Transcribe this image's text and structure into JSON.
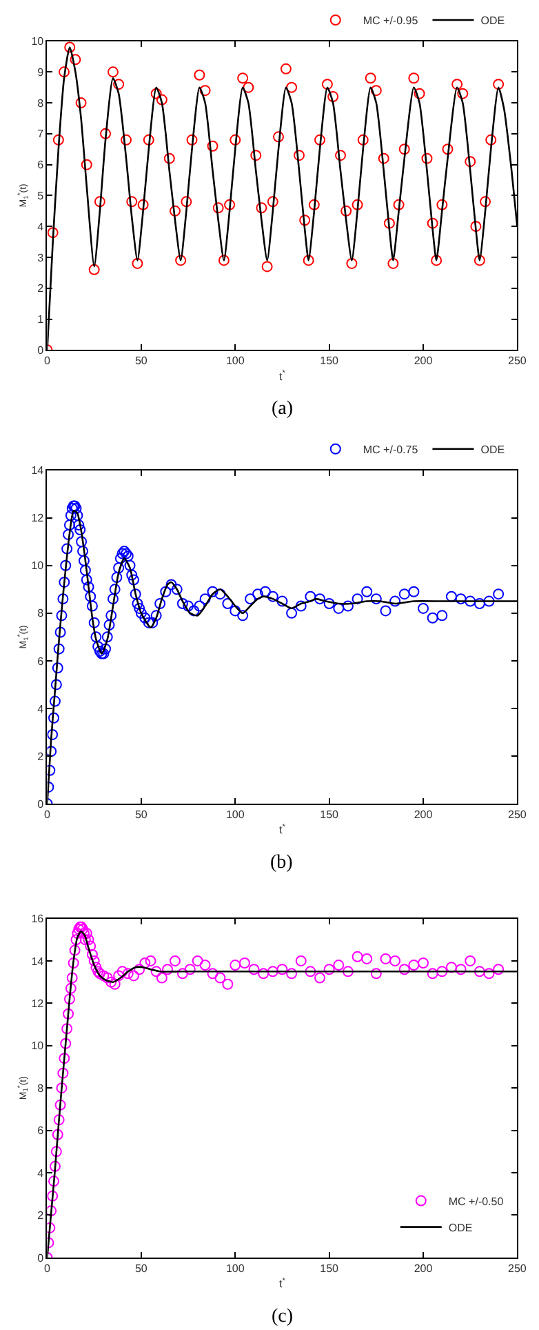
{
  "chart_data": [
    {
      "type": "scatter",
      "xlabel": "t$^{*}$",
      "ylabel": "M$_{1}$$^{*}$(t)",
      "xlim": [
        0,
        250
      ],
      "xticks": [
        0,
        50,
        100,
        150,
        200,
        250
      ],
      "ylim": [
        0,
        10
      ],
      "yticks": [
        0,
        1,
        2,
        3,
        4,
        5,
        6,
        7,
        8,
        9,
        10
      ],
      "legend": "top right",
      "annotations": [
        "(a)"
      ],
      "series": [
        {
          "name": "MC +/-0.95",
          "type": "scatter",
          "marker": "circle",
          "color": "#ff0000",
          "x": [
            0,
            3,
            6,
            9,
            12,
            15,
            18,
            21,
            25,
            28,
            31,
            35,
            38,
            42,
            45,
            48,
            51,
            54,
            58,
            61,
            65,
            68,
            71,
            74,
            77,
            81,
            84,
            88,
            91,
            94,
            97,
            100,
            104,
            107,
            111,
            114,
            117,
            120,
            123,
            127,
            130,
            134,
            137,
            139,
            142,
            145,
            149,
            152,
            156,
            159,
            162,
            165,
            168,
            172,
            175,
            179,
            182,
            184,
            187,
            190,
            195,
            198,
            202,
            205,
            207,
            210,
            213,
            218,
            221,
            225,
            228,
            230,
            233,
            236,
            240
          ],
          "values": [
            0,
            3.8,
            6.8,
            9.0,
            9.8,
            9.4,
            8.0,
            6.0,
            2.6,
            4.8,
            7.0,
            9.0,
            8.6,
            6.8,
            4.8,
            2.8,
            4.7,
            6.8,
            8.3,
            8.1,
            6.2,
            4.5,
            2.9,
            4.8,
            6.8,
            8.9,
            8.4,
            6.6,
            4.6,
            2.9,
            4.7,
            6.8,
            8.8,
            8.5,
            6.3,
            4.6,
            2.7,
            4.8,
            6.9,
            9.1,
            8.5,
            6.3,
            4.2,
            2.9,
            4.7,
            6.8,
            8.6,
            8.2,
            6.3,
            4.5,
            2.8,
            4.7,
            6.8,
            8.8,
            8.4,
            6.2,
            4.1,
            2.8,
            4.7,
            6.5,
            8.8,
            8.3,
            6.2,
            4.1,
            2.9,
            4.7,
            6.5,
            8.6,
            8.3,
            6.1,
            4.0,
            2.9,
            4.8,
            6.8,
            8.6
          ]
        },
        {
          "name": "ODE",
          "type": "line",
          "line_style": "solid",
          "color": "#000000",
          "x": [
            0,
            3,
            6,
            9,
            12,
            15,
            18,
            21,
            25,
            28,
            31,
            35,
            38,
            42,
            45,
            48,
            51,
            54,
            58,
            61,
            65,
            68,
            71,
            74,
            77,
            81,
            84,
            88,
            91,
            94,
            97,
            100,
            104,
            107,
            111,
            114,
            117,
            120,
            123,
            127,
            130,
            134,
            137,
            139,
            142,
            145,
            149,
            152,
            156,
            159,
            162,
            165,
            168,
            172,
            175,
            179,
            182,
            184,
            187,
            190,
            195,
            198,
            202,
            205,
            207,
            210,
            213,
            218,
            221,
            225,
            228,
            230,
            233,
            236,
            240,
            243,
            247,
            250
          ],
          "values": [
            0,
            3.5,
            6.5,
            8.8,
            9.8,
            9.0,
            7.5,
            5.3,
            2.7,
            4.5,
            6.8,
            8.8,
            8.3,
            6.2,
            4.3,
            2.9,
            4.5,
            6.5,
            8.5,
            8.0,
            5.8,
            4.2,
            2.9,
            4.5,
            6.5,
            8.5,
            8.0,
            5.8,
            4.2,
            2.9,
            4.5,
            6.5,
            8.5,
            8.0,
            5.8,
            4.2,
            2.9,
            4.5,
            6.5,
            8.5,
            8.0,
            5.8,
            3.9,
            2.9,
            4.5,
            6.5,
            8.5,
            8.0,
            5.8,
            4.2,
            2.9,
            4.5,
            6.5,
            8.5,
            8.0,
            5.8,
            3.9,
            2.9,
            4.5,
            6.2,
            8.5,
            8.0,
            5.8,
            3.9,
            2.9,
            4.5,
            6.2,
            8.5,
            8.0,
            5.8,
            3.9,
            2.9,
            4.5,
            6.5,
            8.5,
            7.8,
            5.8,
            4.0
          ]
        }
      ]
    },
    {
      "type": "scatter",
      "xlabel": "t$^{*}$",
      "ylabel": "M$_{1}$$^{*}$(t)",
      "xlim": [
        0,
        250
      ],
      "xticks": [
        0,
        50,
        100,
        150,
        200,
        250
      ],
      "ylim": [
        0,
        14
      ],
      "yticks": [
        0,
        2,
        4,
        6,
        8,
        10,
        12,
        14
      ],
      "legend": "top right",
      "annotations": [
        "(b)"
      ],
      "series": [
        {
          "name": "MC +/-0.75",
          "type": "scatter",
          "marker": "circle",
          "color": "#0000ff",
          "x": [
            0,
            0.7,
            1.4,
            2.1,
            2.8,
            3.5,
            4.2,
            4.9,
            5.6,
            6.3,
            7.0,
            7.7,
            8.4,
            9.1,
            9.8,
            10.5,
            11.2,
            11.9,
            12.6,
            13.3,
            14.0,
            14.7,
            15.4,
            16.1,
            16.8,
            17.5,
            18.2,
            18.9,
            19.6,
            20.3,
            21,
            22,
            23,
            24,
            25,
            26,
            27,
            28,
            29,
            30,
            31,
            32,
            33,
            34,
            35,
            36,
            37,
            38,
            39,
            40,
            41,
            42,
            43,
            44,
            45,
            46,
            47,
            48,
            49,
            50,
            52,
            54,
            56,
            58,
            60,
            63,
            66,
            69,
            72,
            75,
            78,
            81,
            84,
            88,
            92,
            96,
            100,
            104,
            108,
            112,
            116,
            120,
            125,
            130,
            135,
            140,
            145,
            150,
            155,
            160,
            165,
            170,
            175,
            180,
            185,
            190,
            195,
            200,
            205,
            210,
            215,
            220,
            225,
            230,
            235,
            240
          ],
          "values": [
            0,
            0.7,
            1.4,
            2.2,
            2.9,
            3.6,
            4.3,
            5.0,
            5.7,
            6.5,
            7.2,
            7.9,
            8.6,
            9.3,
            10.0,
            10.7,
            11.3,
            11.7,
            12.1,
            12.4,
            12.5,
            12.5,
            12.4,
            12.1,
            11.7,
            11.5,
            11.0,
            10.6,
            10.2,
            9.8,
            9.4,
            9.1,
            8.7,
            8.3,
            7.6,
            7.0,
            6.6,
            6.4,
            6.3,
            6.3,
            6.5,
            7.0,
            7.5,
            7.9,
            8.6,
            9.0,
            9.5,
            9.9,
            10.3,
            10.5,
            10.6,
            10.5,
            10.4,
            10.0,
            9.6,
            9.4,
            8.8,
            8.4,
            8.2,
            8.0,
            7.8,
            7.6,
            7.6,
            7.9,
            8.4,
            8.9,
            9.2,
            9.0,
            8.4,
            8.3,
            8.1,
            8.3,
            8.6,
            8.9,
            8.8,
            8.4,
            8.1,
            7.9,
            8.6,
            8.8,
            8.9,
            8.7,
            8.5,
            8.0,
            8.3,
            8.7,
            8.6,
            8.4,
            8.2,
            8.3,
            8.6,
            8.9,
            8.6,
            8.1,
            8.5,
            8.8,
            8.9,
            8.2,
            7.8,
            7.9,
            8.7,
            8.6,
            8.5,
            8.4,
            8.5,
            8.8
          ]
        },
        {
          "name": "ODE",
          "type": "line",
          "line_style": "solid",
          "color": "#000000",
          "x": [
            0,
            2,
            4,
            6,
            8,
            10,
            12,
            14,
            16,
            18,
            20,
            22,
            24,
            26,
            29,
            32,
            35,
            38,
            41,
            44,
            47,
            50,
            55,
            58,
            61,
            64,
            66,
            69,
            72,
            76,
            80,
            84,
            88,
            92,
            96,
            100,
            104,
            108,
            112,
            115,
            120,
            125,
            130,
            135,
            140,
            143,
            148,
            155,
            162,
            170,
            177,
            185,
            195,
            210,
            230,
            250
          ],
          "values": [
            0,
            2.6,
            4.6,
            6.6,
            8.4,
            10.0,
            11.4,
            12.3,
            12.2,
            11.5,
            10.4,
            9.1,
            7.8,
            6.9,
            6.3,
            6.9,
            8.3,
            9.7,
            10.3,
            9.9,
            8.8,
            8.0,
            7.4,
            7.8,
            8.6,
            9.2,
            9.3,
            9.0,
            8.5,
            8.0,
            7.9,
            8.3,
            8.8,
            9.0,
            8.7,
            8.3,
            8.0,
            8.3,
            8.6,
            8.7,
            8.6,
            8.4,
            8.2,
            8.4,
            8.5,
            8.6,
            8.5,
            8.4,
            8.4,
            8.5,
            8.5,
            8.4,
            8.5,
            8.5,
            8.5,
            8.5
          ]
        }
      ]
    },
    {
      "type": "scatter",
      "xlabel": "t$^{*}$",
      "ylabel": "M$_{1}$$^{*}$(t)",
      "xlim": [
        0,
        250
      ],
      "xticks": [
        0,
        50,
        100,
        150,
        200,
        250
      ],
      "ylim": [
        0,
        16
      ],
      "yticks": [
        0,
        2,
        4,
        6,
        8,
        10,
        12,
        14,
        16
      ],
      "legend": "bottom right",
      "annotations": [
        "(c)"
      ],
      "series": [
        {
          "name": "MC +/-0.50",
          "type": "scatter",
          "marker": "circle",
          "color": "#ff00ff",
          "x": [
            0,
            0.7,
            1.4,
            2.1,
            2.8,
            3.5,
            4.2,
            4.9,
            5.6,
            6.3,
            7.0,
            7.7,
            8.4,
            9.1,
            9.8,
            10.5,
            11.2,
            11.9,
            12.6,
            13.3,
            14.0,
            14.7,
            15.4,
            16.1,
            16.8,
            17.5,
            18.2,
            18.9,
            19.6,
            20.3,
            21,
            22,
            23,
            24,
            25,
            26,
            27,
            28,
            30,
            32,
            34,
            36,
            38,
            40,
            43,
            46,
            49,
            52,
            55,
            58,
            61,
            64,
            68,
            72,
            76,
            80,
            84,
            88,
            92,
            96,
            100,
            105,
            110,
            115,
            120,
            125,
            130,
            135,
            140,
            145,
            150,
            155,
            160,
            165,
            170,
            175,
            180,
            185,
            190,
            195,
            200,
            205,
            210,
            215,
            220,
            225,
            230,
            235,
            240
          ],
          "values": [
            0,
            0.7,
            1.4,
            2.2,
            2.9,
            3.6,
            4.3,
            5.0,
            5.8,
            6.5,
            7.2,
            8.0,
            8.7,
            9.4,
            10.1,
            10.8,
            11.5,
            12.2,
            12.7,
            13.2,
            13.9,
            14.5,
            15.0,
            15.3,
            15.5,
            15.6,
            15.6,
            15.5,
            15.3,
            15.0,
            15.3,
            15.0,
            14.7,
            14.3,
            14.0,
            13.7,
            13.5,
            13.4,
            13.3,
            13.2,
            13.0,
            12.9,
            13.3,
            13.5,
            13.4,
            13.3,
            13.6,
            13.9,
            14.0,
            13.5,
            13.2,
            13.6,
            14.0,
            13.4,
            13.6,
            14.0,
            13.8,
            13.4,
            13.2,
            12.9,
            13.8,
            13.9,
            13.6,
            13.4,
            13.5,
            13.6,
            13.4,
            14.0,
            13.5,
            13.2,
            13.6,
            13.8,
            13.5,
            14.2,
            14.1,
            13.4,
            14.1,
            14.0,
            13.6,
            13.8,
            13.9,
            13.4,
            13.5,
            13.7,
            13.6,
            14.0,
            13.5,
            13.4,
            13.6
          ]
        },
        {
          "name": "ODE",
          "type": "line",
          "line_style": "solid",
          "color": "#000000",
          "x": [
            0,
            2,
            4,
            6,
            8,
            10,
            12,
            14,
            16,
            18,
            20,
            22,
            25,
            28,
            31,
            35,
            39,
            43,
            47,
            51,
            55,
            60,
            70,
            80,
            100,
            150,
            200,
            250
          ],
          "values": [
            0,
            2.0,
            4.0,
            6.2,
            8.3,
            10.3,
            12.3,
            14.0,
            15.1,
            15.4,
            15.2,
            14.6,
            13.8,
            13.3,
            13.1,
            13.0,
            13.2,
            13.5,
            13.7,
            13.7,
            13.6,
            13.5,
            13.5,
            13.5,
            13.5,
            13.5,
            13.5,
            13.5
          ]
        }
      ]
    }
  ]
}
